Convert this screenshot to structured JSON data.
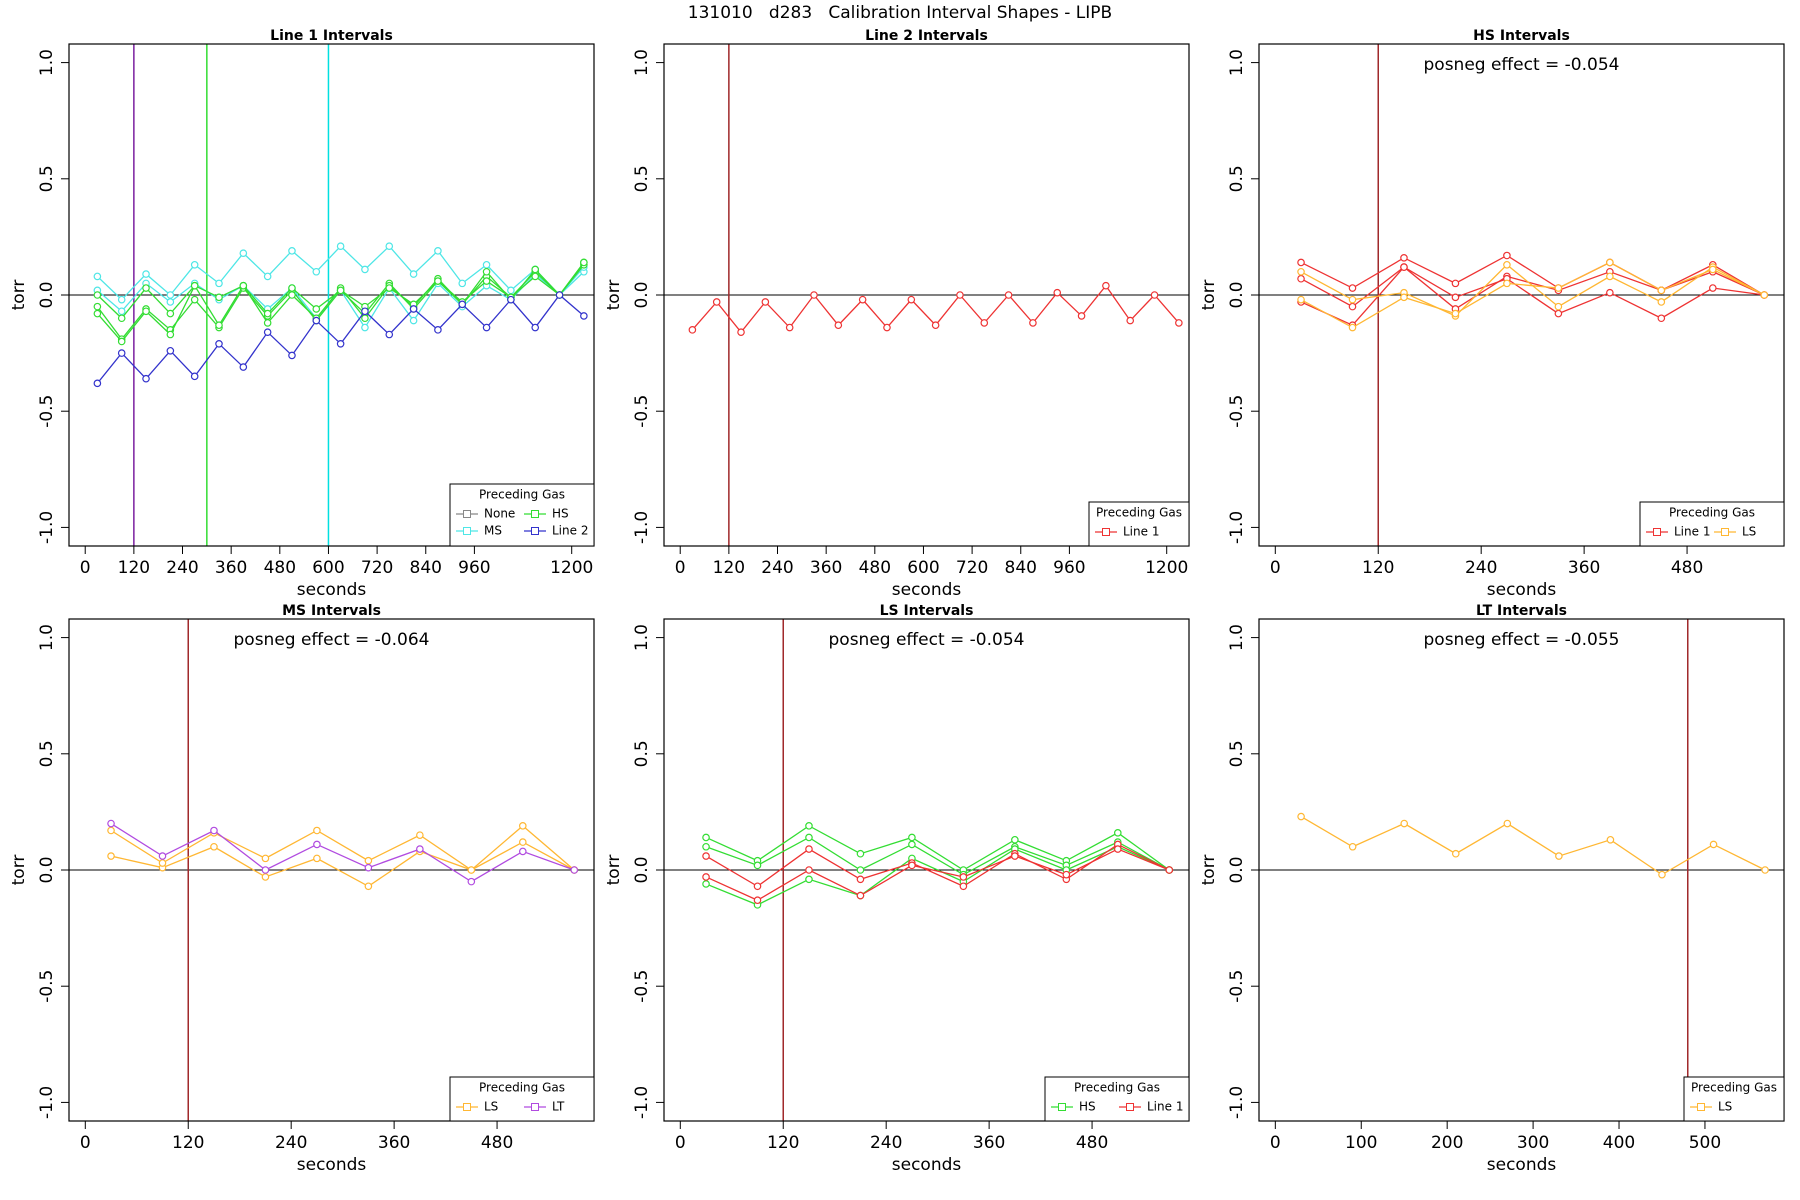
{
  "title": "131010   d283   Calibration Interval Shapes - LIPB",
  "chart_data": [
    {
      "type": "line",
      "title": "Line 1 Intervals",
      "xlabel": "seconds",
      "ylabel": "torr",
      "x": [
        30,
        90,
        150,
        210,
        270,
        330,
        390,
        450,
        510,
        570,
        630,
        690,
        750,
        810,
        870,
        930,
        990,
        1050,
        1110,
        1170,
        1230
      ],
      "xlim": [
        -40,
        1255
      ],
      "xticks": [
        0,
        120,
        240,
        360,
        480,
        600,
        720,
        840,
        960,
        1200
      ],
      "ylim": [
        -1.08,
        1.08
      ],
      "yticks": [
        {
          "value": -1,
          "label": "-1.0"
        },
        {
          "value": -0.5,
          "label": "-0.5"
        },
        {
          "value": 0,
          "label": "0.0"
        },
        {
          "value": 0.5,
          "label": "0.5"
        },
        {
          "value": 1,
          "label": "1.0"
        }
      ],
      "hline": 0,
      "vlines": [
        {
          "x": 120,
          "color": "#7a1fa0"
        },
        {
          "x": 300,
          "color": "#33dd33"
        },
        {
          "x": 600,
          "color": "#00e0e0"
        }
      ],
      "legend": "bottomright",
      "legend_title": "Preceding Gas",
      "series": [
        {
          "name": "None",
          "color": "#888888",
          "lines": []
        },
        {
          "name": "MS",
          "color": "#4ee6e6",
          "lines": [
            [
              0.08,
              -0.02,
              0.09,
              0.0,
              0.13,
              0.05,
              0.18,
              0.08,
              0.19,
              0.1,
              0.21,
              0.11,
              0.21,
              0.09,
              0.19,
              0.05,
              0.13,
              0.02,
              0.11,
              0.0,
              0.1
            ],
            [
              0.02,
              -0.07,
              0.05,
              -0.03,
              0.05,
              -0.02,
              0.04,
              -0.06,
              0.03,
              -0.1,
              0.02,
              -0.14,
              0.03,
              -0.11,
              0.05,
              -0.05,
              0.04,
              -0.02,
              0.09,
              0.0,
              0.12
            ]
          ]
        },
        {
          "name": "HS",
          "color": "#33dd33",
          "lines": [
            [
              -0.05,
              -0.19,
              -0.06,
              -0.15,
              -0.02,
              -0.14,
              0.03,
              -0.09,
              0.02,
              -0.11,
              0.02,
              -0.08,
              0.05,
              -0.06,
              0.06,
              -0.04,
              0.08,
              -0.01,
              0.1,
              0.0,
              0.14
            ],
            [
              -0.08,
              -0.2,
              -0.07,
              -0.17,
              0.04,
              -0.13,
              0.04,
              -0.12,
              0.0,
              -0.1,
              0.03,
              -0.1,
              0.04,
              -0.05,
              0.07,
              -0.04,
              0.1,
              -0.02,
              0.11,
              0.0,
              0.13
            ],
            [
              0.0,
              -0.1,
              0.03,
              -0.08,
              0.04,
              -0.01,
              0.04,
              -0.08,
              0.03,
              -0.06,
              0.02,
              -0.05,
              0.03,
              -0.04,
              0.06,
              -0.03,
              0.06,
              -0.01,
              0.08,
              0.0,
              0.14
            ]
          ]
        },
        {
          "name": "Line 2",
          "color": "#3333cc",
          "lines": [
            [
              -0.38,
              -0.25,
              -0.36,
              -0.24,
              -0.35,
              -0.21,
              -0.31,
              -0.16,
              -0.26,
              -0.11,
              -0.21,
              -0.07,
              -0.17,
              -0.06,
              -0.15,
              -0.04,
              -0.14,
              -0.02,
              -0.14,
              0.0,
              -0.09
            ]
          ]
        }
      ]
    },
    {
      "type": "line",
      "title": "Line 2 Intervals",
      "xlabel": "seconds",
      "ylabel": "torr",
      "x": [
        30,
        90,
        150,
        210,
        270,
        330,
        390,
        450,
        510,
        570,
        630,
        690,
        750,
        810,
        870,
        930,
        990,
        1050,
        1110,
        1170,
        1230
      ],
      "xlim": [
        -40,
        1255
      ],
      "xticks": [
        0,
        120,
        240,
        360,
        480,
        600,
        720,
        840,
        960,
        1200
      ],
      "ylim": [
        -1.08,
        1.08
      ],
      "yticks": [
        {
          "value": -1,
          "label": "-1.0"
        },
        {
          "value": -0.5,
          "label": "-0.5"
        },
        {
          "value": 0,
          "label": "0.0"
        },
        {
          "value": 0.5,
          "label": "0.5"
        },
        {
          "value": 1,
          "label": "1.0"
        }
      ],
      "hline": 0,
      "vlines": [
        {
          "x": 120,
          "color": "#a0282a"
        }
      ],
      "legend": "bottomright",
      "legend_title": "Preceding Gas",
      "series": [
        {
          "name": "Line 1",
          "color": "#ee3333",
          "lines": [
            [
              -0.15,
              -0.03,
              -0.16,
              -0.03,
              -0.14,
              0.0,
              -0.13,
              -0.02,
              -0.14,
              -0.02,
              -0.13,
              0.0,
              -0.12,
              0.0,
              -0.12,
              0.01,
              -0.09,
              0.04,
              -0.11,
              0.0,
              -0.12
            ]
          ]
        }
      ]
    },
    {
      "type": "line",
      "title": "HS Intervals",
      "xlabel": "seconds",
      "ylabel": "torr",
      "annotation": "posneg effect = -0.054",
      "x": [
        30,
        90,
        150,
        210,
        270,
        330,
        390,
        450,
        510,
        570
      ],
      "xlim": [
        -19,
        593
      ],
      "xticks": [
        0,
        120,
        240,
        360,
        480
      ],
      "ylim": [
        -1.08,
        1.08
      ],
      "yticks": [
        {
          "value": -1,
          "label": "-1.0"
        },
        {
          "value": -0.5,
          "label": "-0.5"
        },
        {
          "value": 0,
          "label": "0.0"
        },
        {
          "value": 0.5,
          "label": "0.5"
        },
        {
          "value": 1,
          "label": "1.0"
        }
      ],
      "hline": 0,
      "vlines": [
        {
          "x": 120,
          "color": "#a0282a"
        }
      ],
      "legend": "bottomright",
      "legend_title": "Preceding Gas",
      "series": [
        {
          "name": "Line 1",
          "color": "#ee3333",
          "lines": [
            [
              0.14,
              0.03,
              0.16,
              0.05,
              0.17,
              0.03,
              0.14,
              0.02,
              0.13,
              0.0
            ],
            [
              0.07,
              -0.05,
              0.12,
              -0.06,
              0.08,
              0.02,
              0.1,
              0.02,
              0.1,
              0.0
            ],
            [
              -0.03,
              -0.13,
              0.12,
              -0.01,
              0.07,
              -0.08,
              0.01,
              -0.1,
              0.03,
              0.0
            ]
          ]
        },
        {
          "name": "LS",
          "color": "#ffb733",
          "lines": [
            [
              0.1,
              -0.02,
              0.01,
              -0.09,
              0.13,
              -0.05,
              0.08,
              -0.03,
              0.12,
              0.0
            ],
            [
              -0.02,
              -0.14,
              -0.01,
              -0.08,
              0.05,
              0.03,
              0.14,
              0.02,
              0.11,
              0.0
            ]
          ]
        }
      ]
    },
    {
      "type": "line",
      "title": "MS Intervals",
      "xlabel": "seconds",
      "ylabel": "torr",
      "annotation": "posneg effect = -0.064",
      "x": [
        30,
        90,
        150,
        210,
        270,
        330,
        390,
        450,
        510,
        570
      ],
      "xlim": [
        -19,
        593
      ],
      "xticks": [
        0,
        120,
        240,
        360,
        480
      ],
      "ylim": [
        -1.08,
        1.08
      ],
      "yticks": [
        {
          "value": -1,
          "label": "-1.0"
        },
        {
          "value": -0.5,
          "label": "-0.5"
        },
        {
          "value": 0,
          "label": "0.0"
        },
        {
          "value": 0.5,
          "label": "0.5"
        },
        {
          "value": 1,
          "label": "1.0"
        }
      ],
      "hline": 0,
      "vlines": [
        {
          "x": 120,
          "color": "#a0282a"
        }
      ],
      "legend": "bottomright",
      "legend_title": "Preceding Gas",
      "series": [
        {
          "name": "LS",
          "color": "#ffb733",
          "lines": [
            [
              0.06,
              0.01,
              0.1,
              -0.03,
              0.05,
              -0.07,
              0.08,
              0.0,
              0.12,
              0.0
            ],
            [
              0.17,
              0.03,
              0.16,
              0.05,
              0.17,
              0.04,
              0.15,
              0.0,
              0.19,
              0.0
            ]
          ]
        },
        {
          "name": "LT",
          "color": "#b14be0",
          "lines": [
            [
              0.2,
              0.06,
              0.17,
              0.0,
              0.11,
              0.01,
              0.09,
              -0.05,
              0.08,
              0.0
            ]
          ]
        }
      ]
    },
    {
      "type": "line",
      "title": "LS Intervals",
      "xlabel": "seconds",
      "ylabel": "torr",
      "annotation": "posneg effect = -0.054",
      "x": [
        30,
        90,
        150,
        210,
        270,
        330,
        390,
        450,
        510,
        570
      ],
      "xlim": [
        -19,
        593
      ],
      "xticks": [
        0,
        120,
        240,
        360,
        480
      ],
      "ylim": [
        -1.08,
        1.08
      ],
      "yticks": [
        {
          "value": -1,
          "label": "-1.0"
        },
        {
          "value": -0.5,
          "label": "-0.5"
        },
        {
          "value": 0,
          "label": "0.0"
        },
        {
          "value": 0.5,
          "label": "0.5"
        },
        {
          "value": 1,
          "label": "1.0"
        }
      ],
      "hline": 0,
      "vlines": [
        {
          "x": 120,
          "color": "#a0282a"
        }
      ],
      "legend": "bottomright",
      "legend_title": "Preceding Gas",
      "series": [
        {
          "name": "HS",
          "color": "#33dd33",
          "lines": [
            [
              0.14,
              0.04,
              0.19,
              0.07,
              0.14,
              0.0,
              0.13,
              0.04,
              0.16,
              0.0
            ],
            [
              0.1,
              0.02,
              0.14,
              0.0,
              0.11,
              -0.02,
              0.1,
              0.02,
              0.12,
              0.0
            ],
            [
              -0.06,
              -0.15,
              -0.04,
              -0.11,
              0.05,
              -0.05,
              0.09,
              0.0,
              0.1,
              0.0
            ]
          ]
        },
        {
          "name": "Line 1",
          "color": "#ee3333",
          "lines": [
            [
              0.06,
              -0.07,
              0.09,
              -0.04,
              0.03,
              -0.07,
              0.07,
              -0.04,
              0.11,
              0.0
            ],
            [
              -0.03,
              -0.13,
              0.0,
              -0.11,
              0.02,
              -0.03,
              0.06,
              -0.02,
              0.09,
              0.0
            ]
          ]
        }
      ]
    },
    {
      "type": "line",
      "title": "LT Intervals",
      "xlabel": "seconds",
      "ylabel": "torr",
      "annotation": "posneg effect = -0.055",
      "x": [
        30,
        90,
        150,
        210,
        270,
        330,
        390,
        450,
        510,
        570
      ],
      "xlim": [
        -19,
        592
      ],
      "xticks": [
        0,
        100,
        200,
        300,
        400,
        500
      ],
      "ylim": [
        -1.08,
        1.08
      ],
      "yticks": [
        {
          "value": -1,
          "label": "-1.0"
        },
        {
          "value": -0.5,
          "label": "-0.5"
        },
        {
          "value": 0,
          "label": "0.0"
        },
        {
          "value": 0.5,
          "label": "0.5"
        },
        {
          "value": 1,
          "label": "1.0"
        }
      ],
      "hline": 0,
      "vlines": [
        {
          "x": 480,
          "color": "#a0282a"
        }
      ],
      "legend": "bottomright",
      "legend_title": "Preceding Gas",
      "series": [
        {
          "name": "LS",
          "color": "#ffb733",
          "lines": [
            [
              0.23,
              0.1,
              0.2,
              0.07,
              0.2,
              0.06,
              0.13,
              -0.02,
              0.11,
              0.0
            ]
          ]
        }
      ]
    }
  ]
}
